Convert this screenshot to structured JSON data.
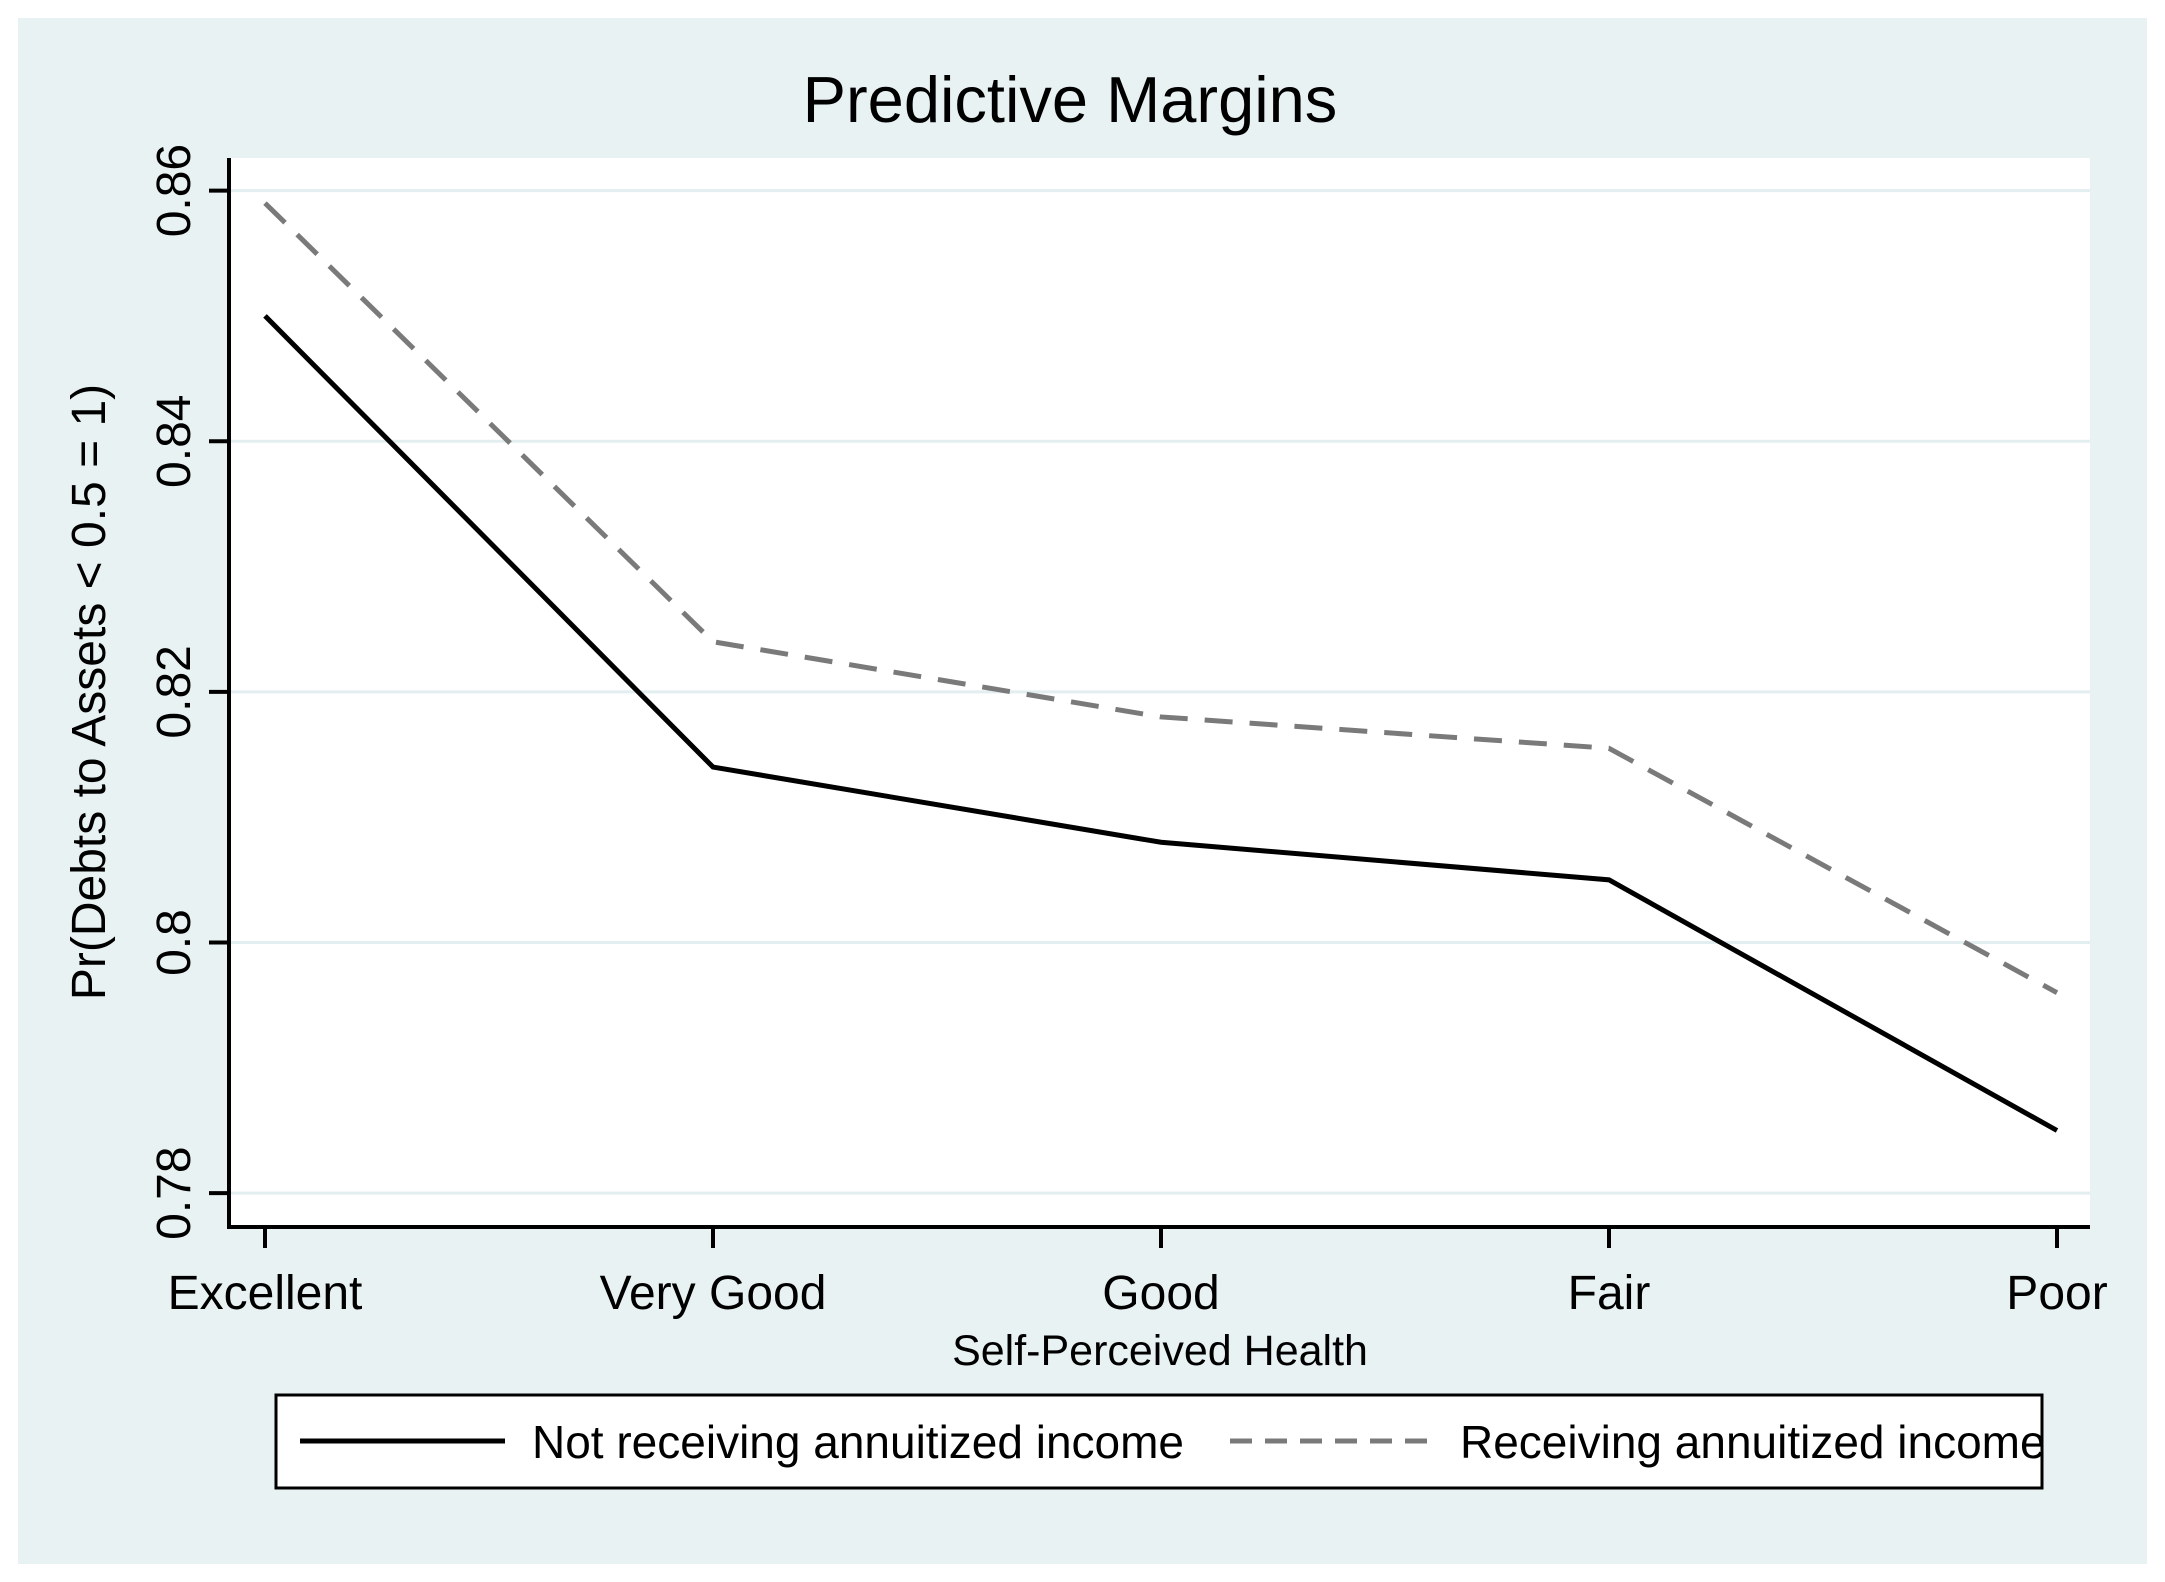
{
  "page": {
    "page_background": "#ffffff",
    "canvas_color": "#e9f2f3"
  },
  "chart_data": {
    "type": "line",
    "title": "Predictive Margins",
    "title_color": "#17406a",
    "xlabel": "Self-Perceived Health",
    "ylabel": "Pr(Debts to Assets < 0.5 = 1)",
    "categories": [
      "Excellent",
      "Very Good",
      "Good",
      "Fair",
      "Poor"
    ],
    "y_ticks": [
      0.78,
      0.8,
      0.82,
      0.84,
      0.86
    ],
    "y_tick_labels": [
      "0.78",
      "0.8",
      "0.82",
      "0.84",
      "0.86"
    ],
    "ylim": [
      0.7773,
      0.8626
    ],
    "grid": true,
    "gridline_color": "#e3eef1",
    "axis_color": "#000000",
    "plot_background": "#ffffff",
    "legend_position": "bottom",
    "series": [
      {
        "name": "Not receiving annuitized income",
        "style": "solid",
        "color": "#000000",
        "values": [
          0.85,
          0.814,
          0.808,
          0.805,
          0.785
        ]
      },
      {
        "name": "Receiving annuitized income",
        "style": "dashed",
        "color": "#7a7a7a",
        "values": [
          0.859,
          0.824,
          0.818,
          0.8155,
          0.796
        ]
      }
    ]
  }
}
